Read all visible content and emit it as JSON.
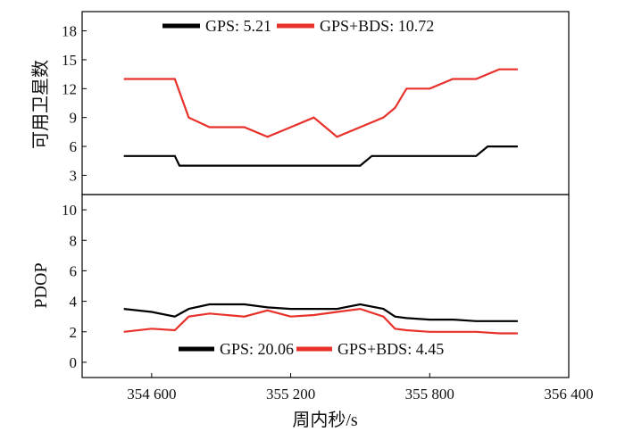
{
  "chart_data": [
    {
      "type": "line",
      "ylabel": "可用卫星数",
      "ylim": [
        1,
        20
      ],
      "yticks": [
        3,
        6,
        9,
        12,
        15,
        18
      ],
      "xlim": [
        354300,
        356400
      ],
      "colors": {
        "GPS": "#000000",
        "GPS+BDS": "#e8312a"
      },
      "legend": {
        "position": "top-center",
        "items": [
          "GPS: 5.21",
          "GPS+BDS: 10.72"
        ]
      },
      "series": [
        {
          "name": "GPS",
          "color": "#000000",
          "x": [
            354480,
            354700,
            354720,
            354800,
            354900,
            355000,
            355100,
            355200,
            355300,
            355400,
            355500,
            355550,
            355600,
            355700,
            355800,
            355900,
            356000,
            356050,
            356100,
            356180
          ],
          "y": [
            5,
            5,
            4,
            4,
            4,
            4,
            4,
            4,
            4,
            4,
            4,
            5,
            5,
            5,
            5,
            5,
            5,
            6,
            6,
            6
          ]
        },
        {
          "name": "GPS+BDS",
          "color": "#e8312a",
          "x": [
            354480,
            354600,
            354700,
            354760,
            354850,
            355000,
            355100,
            355200,
            355300,
            355400,
            355500,
            355600,
            355650,
            355700,
            355800,
            355900,
            356000,
            356100,
            356180
          ],
          "y": [
            13,
            13,
            13,
            9,
            8,
            8,
            7,
            8,
            9,
            7,
            8,
            9,
            10,
            12,
            12,
            13,
            13,
            14,
            14
          ]
        }
      ]
    },
    {
      "type": "line",
      "xlabel": "周内秒/s",
      "ylabel": "PDOP",
      "ylim": [
        -1,
        11
      ],
      "yticks": [
        0,
        2,
        4,
        6,
        8,
        10
      ],
      "xlim": [
        354300,
        356400
      ],
      "xticks": [
        354600,
        355200,
        355800,
        356400
      ],
      "xtick_labels": [
        "354 600",
        "355 200",
        "355 800",
        "356 400"
      ],
      "legend": {
        "position": "bottom-center",
        "items": [
          "GPS: 20.06",
          "GPS+BDS: 4.45"
        ]
      },
      "series": [
        {
          "name": "GPS",
          "color": "#000000",
          "x": [
            354480,
            354600,
            354700,
            354760,
            354850,
            355000,
            355100,
            355200,
            355300,
            355400,
            355500,
            355600,
            355650,
            355700,
            355800,
            355900,
            356000,
            356100,
            356180
          ],
          "y": [
            3.5,
            3.3,
            3.0,
            3.5,
            3.8,
            3.8,
            3.6,
            3.5,
            3.5,
            3.5,
            3.8,
            3.5,
            3.0,
            2.9,
            2.8,
            2.8,
            2.7,
            2.7,
            2.7
          ]
        },
        {
          "name": "GPS+BDS",
          "color": "#e8312a",
          "x": [
            354480,
            354600,
            354700,
            354760,
            354850,
            355000,
            355100,
            355200,
            355300,
            355400,
            355500,
            355600,
            355650,
            355700,
            355800,
            355900,
            356000,
            356100,
            356180
          ],
          "y": [
            2.0,
            2.2,
            2.1,
            3.0,
            3.2,
            3.0,
            3.4,
            3.0,
            3.1,
            3.3,
            3.5,
            3.0,
            2.2,
            2.1,
            2.0,
            2.0,
            2.0,
            1.9,
            1.9
          ]
        }
      ]
    }
  ]
}
